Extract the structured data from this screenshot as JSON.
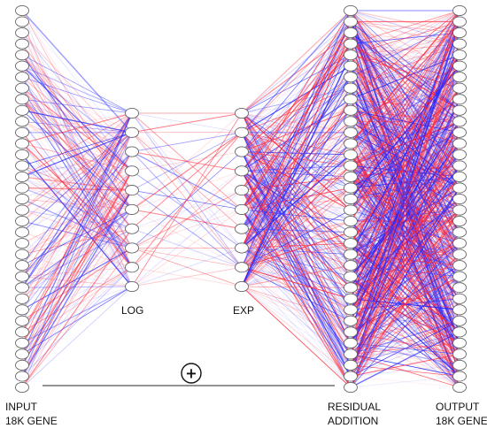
{
  "labels": {
    "input": {
      "line1": "INPUT",
      "line2": "18K GENE"
    },
    "log": "LOG",
    "exp": "EXP",
    "residual": {
      "line1": "RESIDUAL",
      "line2": "ADDITION"
    },
    "output": {
      "line1": "OUTPUT",
      "line2": "18K GENE"
    },
    "plus_symbol": "+"
  },
  "layers": {
    "input_nodes": 35,
    "log_nodes": 10,
    "exp_nodes": 10,
    "residual_nodes": 35,
    "output_nodes": 35
  },
  "colors": {
    "positive_edge": "#ff2a3c",
    "negative_edge": "#2a2aff",
    "node_stroke": "#666666",
    "skip_line": "#555555"
  }
}
